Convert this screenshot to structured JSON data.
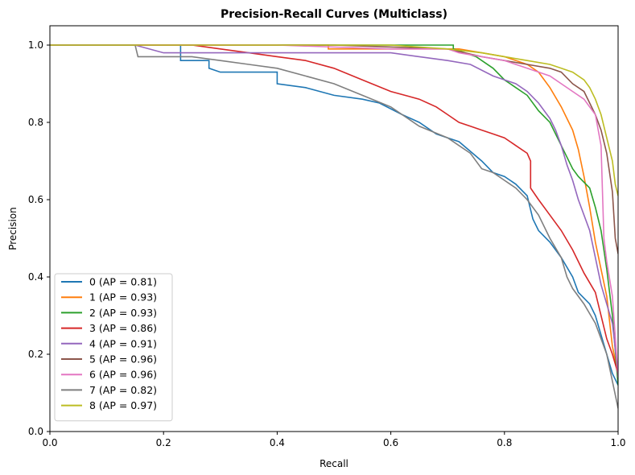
{
  "chart_data": {
    "type": "line",
    "title": "Precision-Recall Curves (Multiclass)",
    "xlabel": "Recall",
    "ylabel": "Precision",
    "xlim": [
      0,
      1
    ],
    "ylim": [
      0,
      1.05
    ],
    "x_ticks": [
      "0.0",
      "0.2",
      "0.4",
      "0.6",
      "0.8",
      "1.0"
    ],
    "y_ticks": [
      "0.0",
      "0.2",
      "0.4",
      "0.6",
      "0.8",
      "1.0"
    ],
    "grid": false,
    "legend_position": "lower-left",
    "series": [
      {
        "name": "0 (AP = 0.81)",
        "color": "#1f77b4",
        "points": [
          [
            0,
            1.0
          ],
          [
            0.2,
            1.0
          ],
          [
            0.23,
            1.0
          ],
          [
            0.23,
            0.96
          ],
          [
            0.28,
            0.96
          ],
          [
            0.28,
            0.94
          ],
          [
            0.3,
            0.93
          ],
          [
            0.35,
            0.93
          ],
          [
            0.4,
            0.93
          ],
          [
            0.4,
            0.9
          ],
          [
            0.45,
            0.89
          ],
          [
            0.5,
            0.87
          ],
          [
            0.55,
            0.86
          ],
          [
            0.58,
            0.85
          ],
          [
            0.62,
            0.82
          ],
          [
            0.65,
            0.8
          ],
          [
            0.68,
            0.77
          ],
          [
            0.7,
            0.76
          ],
          [
            0.72,
            0.75
          ],
          [
            0.76,
            0.7
          ],
          [
            0.78,
            0.67
          ],
          [
            0.8,
            0.66
          ],
          [
            0.82,
            0.64
          ],
          [
            0.84,
            0.61
          ],
          [
            0.85,
            0.55
          ],
          [
            0.86,
            0.52
          ],
          [
            0.88,
            0.49
          ],
          [
            0.9,
            0.45
          ],
          [
            0.92,
            0.4
          ],
          [
            0.93,
            0.36
          ],
          [
            0.95,
            0.33
          ],
          [
            0.96,
            0.3
          ],
          [
            0.97,
            0.25
          ],
          [
            0.98,
            0.2
          ],
          [
            0.99,
            0.15
          ],
          [
            1.0,
            0.12
          ]
        ]
      },
      {
        "name": "1 (AP = 0.93)",
        "color": "#ff7f0e",
        "points": [
          [
            0,
            1.0
          ],
          [
            0.3,
            1.0
          ],
          [
            0.49,
            1.0
          ],
          [
            0.49,
            0.99
          ],
          [
            0.6,
            0.99
          ],
          [
            0.7,
            0.99
          ],
          [
            0.72,
            0.99
          ],
          [
            0.76,
            0.98
          ],
          [
            0.8,
            0.97
          ],
          [
            0.84,
            0.95
          ],
          [
            0.86,
            0.93
          ],
          [
            0.88,
            0.89
          ],
          [
            0.9,
            0.84
          ],
          [
            0.92,
            0.78
          ],
          [
            0.93,
            0.73
          ],
          [
            0.94,
            0.66
          ],
          [
            0.95,
            0.58
          ],
          [
            0.96,
            0.49
          ],
          [
            0.97,
            0.42
          ],
          [
            0.98,
            0.35
          ],
          [
            0.99,
            0.22
          ],
          [
            1.0,
            0.15
          ]
        ]
      },
      {
        "name": "2 (AP = 0.93)",
        "color": "#2ca02c",
        "points": [
          [
            0,
            1.0
          ],
          [
            0.4,
            1.0
          ],
          [
            0.6,
            1.0
          ],
          [
            0.71,
            1.0
          ],
          [
            0.71,
            0.99
          ],
          [
            0.75,
            0.97
          ],
          [
            0.78,
            0.94
          ],
          [
            0.8,
            0.91
          ],
          [
            0.82,
            0.89
          ],
          [
            0.84,
            0.87
          ],
          [
            0.86,
            0.83
          ],
          [
            0.88,
            0.8
          ],
          [
            0.9,
            0.74
          ],
          [
            0.92,
            0.68
          ],
          [
            0.93,
            0.66
          ],
          [
            0.95,
            0.63
          ],
          [
            0.96,
            0.58
          ],
          [
            0.97,
            0.52
          ],
          [
            0.98,
            0.42
          ],
          [
            0.99,
            0.3
          ],
          [
            1.0,
            0.12
          ]
        ]
      },
      {
        "name": "3 (AP = 0.86)",
        "color": "#d62728",
        "points": [
          [
            0,
            1.0
          ],
          [
            0.25,
            1.0
          ],
          [
            0.3,
            0.99
          ],
          [
            0.35,
            0.98
          ],
          [
            0.4,
            0.97
          ],
          [
            0.45,
            0.96
          ],
          [
            0.5,
            0.94
          ],
          [
            0.55,
            0.91
          ],
          [
            0.6,
            0.88
          ],
          [
            0.65,
            0.86
          ],
          [
            0.68,
            0.84
          ],
          [
            0.7,
            0.82
          ],
          [
            0.72,
            0.8
          ],
          [
            0.74,
            0.79
          ],
          [
            0.76,
            0.78
          ],
          [
            0.78,
            0.77
          ],
          [
            0.8,
            0.76
          ],
          [
            0.82,
            0.74
          ],
          [
            0.84,
            0.72
          ],
          [
            0.846,
            0.7
          ],
          [
            0.846,
            0.63
          ],
          [
            0.86,
            0.6
          ],
          [
            0.88,
            0.56
          ],
          [
            0.9,
            0.52
          ],
          [
            0.92,
            0.47
          ],
          [
            0.94,
            0.41
          ],
          [
            0.96,
            0.36
          ],
          [
            0.97,
            0.3
          ],
          [
            0.98,
            0.24
          ],
          [
            0.99,
            0.2
          ],
          [
            1.0,
            0.15
          ]
        ]
      },
      {
        "name": "4 (AP = 0.91)",
        "color": "#9467bd",
        "points": [
          [
            0,
            1.0
          ],
          [
            0.15,
            1.0
          ],
          [
            0.2,
            0.98
          ],
          [
            0.3,
            0.98
          ],
          [
            0.4,
            0.98
          ],
          [
            0.5,
            0.98
          ],
          [
            0.6,
            0.98
          ],
          [
            0.65,
            0.97
          ],
          [
            0.7,
            0.96
          ],
          [
            0.74,
            0.95
          ],
          [
            0.78,
            0.92
          ],
          [
            0.82,
            0.9
          ],
          [
            0.84,
            0.88
          ],
          [
            0.86,
            0.85
          ],
          [
            0.88,
            0.81
          ],
          [
            0.89,
            0.78
          ],
          [
            0.9,
            0.74
          ],
          [
            0.91,
            0.69
          ],
          [
            0.92,
            0.65
          ],
          [
            0.93,
            0.6
          ],
          [
            0.95,
            0.52
          ],
          [
            0.96,
            0.45
          ],
          [
            0.97,
            0.38
          ],
          [
            0.98,
            0.33
          ],
          [
            0.99,
            0.28
          ],
          [
            1.0,
            0.15
          ]
        ]
      },
      {
        "name": "5 (AP = 0.96)",
        "color": "#8c564b",
        "points": [
          [
            0,
            1.0
          ],
          [
            0.5,
            1.0
          ],
          [
            0.7,
            0.99
          ],
          [
            0.76,
            0.97
          ],
          [
            0.8,
            0.96
          ],
          [
            0.84,
            0.95
          ],
          [
            0.88,
            0.94
          ],
          [
            0.9,
            0.93
          ],
          [
            0.92,
            0.9
          ],
          [
            0.94,
            0.88
          ],
          [
            0.95,
            0.85
          ],
          [
            0.96,
            0.82
          ],
          [
            0.97,
            0.78
          ],
          [
            0.98,
            0.72
          ],
          [
            0.99,
            0.62
          ],
          [
            0.995,
            0.5
          ],
          [
            1.0,
            0.46
          ]
        ]
      },
      {
        "name": "6 (AP = 0.96)",
        "color": "#e377c2",
        "points": [
          [
            0,
            1.0
          ],
          [
            0.4,
            1.0
          ],
          [
            0.6,
            0.99
          ],
          [
            0.7,
            0.99
          ],
          [
            0.72,
            0.98
          ],
          [
            0.76,
            0.97
          ],
          [
            0.8,
            0.96
          ],
          [
            0.84,
            0.94
          ],
          [
            0.88,
            0.92
          ],
          [
            0.9,
            0.9
          ],
          [
            0.92,
            0.88
          ],
          [
            0.94,
            0.86
          ],
          [
            0.96,
            0.82
          ],
          [
            0.97,
            0.74
          ],
          [
            0.975,
            0.5
          ],
          [
            0.98,
            0.44
          ],
          [
            0.99,
            0.35
          ],
          [
            1.0,
            0.14
          ]
        ]
      },
      {
        "name": "7 (AP = 0.82)",
        "color": "#7f7f7f",
        "points": [
          [
            0,
            1.0
          ],
          [
            0.15,
            1.0
          ],
          [
            0.155,
            0.97
          ],
          [
            0.2,
            0.97
          ],
          [
            0.25,
            0.97
          ],
          [
            0.3,
            0.96
          ],
          [
            0.35,
            0.95
          ],
          [
            0.4,
            0.94
          ],
          [
            0.45,
            0.92
          ],
          [
            0.5,
            0.9
          ],
          [
            0.55,
            0.87
          ],
          [
            0.6,
            0.84
          ],
          [
            0.65,
            0.79
          ],
          [
            0.7,
            0.76
          ],
          [
            0.72,
            0.74
          ],
          [
            0.74,
            0.72
          ],
          [
            0.76,
            0.68
          ],
          [
            0.78,
            0.67
          ],
          [
            0.8,
            0.65
          ],
          [
            0.82,
            0.63
          ],
          [
            0.84,
            0.6
          ],
          [
            0.86,
            0.56
          ],
          [
            0.88,
            0.5
          ],
          [
            0.9,
            0.45
          ],
          [
            0.91,
            0.4
          ],
          [
            0.92,
            0.37
          ],
          [
            0.94,
            0.33
          ],
          [
            0.96,
            0.28
          ],
          [
            0.98,
            0.2
          ],
          [
            0.99,
            0.13
          ],
          [
            1.0,
            0.06
          ]
        ]
      },
      {
        "name": "8 (AP = 0.97)",
        "color": "#bcbd22",
        "points": [
          [
            0,
            1.0
          ],
          [
            0.6,
            1.0
          ],
          [
            0.7,
            0.99
          ],
          [
            0.76,
            0.98
          ],
          [
            0.8,
            0.97
          ],
          [
            0.84,
            0.96
          ],
          [
            0.88,
            0.95
          ],
          [
            0.9,
            0.94
          ],
          [
            0.92,
            0.93
          ],
          [
            0.94,
            0.91
          ],
          [
            0.95,
            0.89
          ],
          [
            0.96,
            0.86
          ],
          [
            0.97,
            0.82
          ],
          [
            0.98,
            0.76
          ],
          [
            0.99,
            0.7
          ],
          [
            0.995,
            0.64
          ],
          [
            1.0,
            0.61
          ]
        ]
      }
    ]
  }
}
